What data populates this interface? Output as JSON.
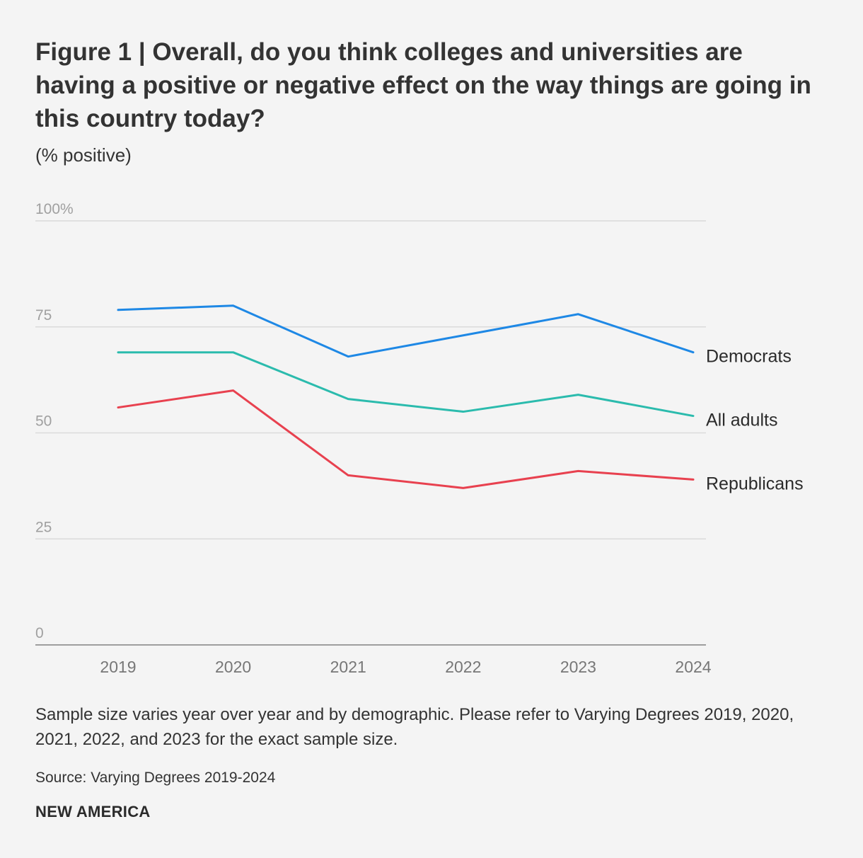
{
  "header": {
    "title": "Figure 1 | Overall, do you think colleges and universities are having a positive or negative effect on the way things are going in this country today?",
    "subtitle": "(% positive)"
  },
  "footer": {
    "note": "Sample size varies year over year and by demographic. Please refer to Varying Degrees 2019, 2020, 2021, 2022, and 2023 for the exact sample size.",
    "source": "Source: Varying Degrees 2019-2024",
    "brand": "NEW AMERICA"
  },
  "chart_data": {
    "type": "line",
    "title": "Figure 1 | Overall, do you think colleges and universities are having a positive or negative effect on the way things are going in this country today?",
    "ylabel": "(% positive)",
    "xlabel": "",
    "categories": [
      "2019",
      "2020",
      "2021",
      "2022",
      "2023",
      "2024"
    ],
    "ylim": [
      0,
      100
    ],
    "yticks": [
      0,
      25,
      50,
      75,
      100
    ],
    "ytick_labels": [
      "0",
      "25",
      "50",
      "75",
      "100%"
    ],
    "grid": true,
    "legend": "direct labels at right end of lines",
    "series": [
      {
        "name": "Democrats",
        "color": "#1e88e5",
        "values": [
          79,
          80,
          68,
          73,
          78,
          69
        ]
      },
      {
        "name": "All adults",
        "color": "#2bbbad",
        "values": [
          69,
          69,
          58,
          55,
          59,
          54
        ]
      },
      {
        "name": "Republicans",
        "color": "#e8414f",
        "values": [
          56,
          60,
          40,
          37,
          41,
          39
        ]
      }
    ]
  }
}
